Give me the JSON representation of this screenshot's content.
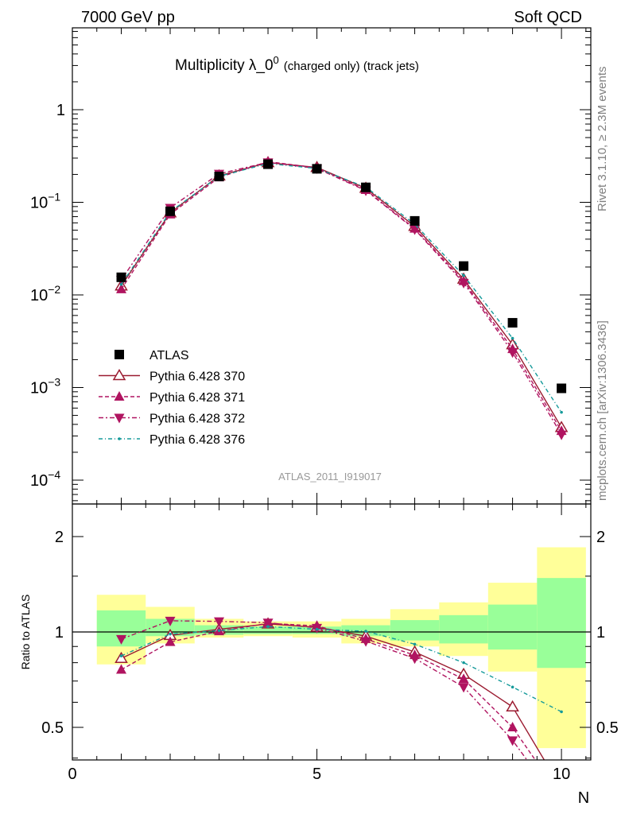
{
  "header": {
    "left": "7000 GeV pp",
    "right": "Soft QCD"
  },
  "side_labels": {
    "top": "Rivet 3.1.10, ≥ 2.3M events",
    "bottom": "mcplots.cern.ch [arXiv:1306.3436]"
  },
  "colors": {
    "atlas": "#000000",
    "p370": "#9b1b30",
    "p371": "#b01460",
    "p372": "#b01460",
    "p376": "#159a9a",
    "band_outer": "#ffff99",
    "band_inner": "#99ff99"
  },
  "chart_data": [
    {
      "type": "scatter",
      "title_main": "Multiplicity λ_0",
      "title_sup": "0",
      "title_small": "(charged only) (track jets)",
      "watermark": "ATLAS_2011_I919017",
      "y_scale": "log",
      "xlim": [
        0,
        10.6
      ],
      "ylim": [
        5e-05,
        5
      ],
      "y_ticks": [
        {
          "value": 1,
          "base": "1",
          "exp": ""
        },
        {
          "value": 0.1,
          "base": "10",
          "exp": "−1"
        },
        {
          "value": 0.01,
          "base": "10",
          "exp": "−2"
        },
        {
          "value": 0.001,
          "base": "10",
          "exp": "−3"
        },
        {
          "value": 0.0001,
          "base": "10",
          "exp": "−4"
        }
      ],
      "legend_position": "lower-left",
      "series": [
        {
          "name": "ATLAS",
          "style": "data",
          "x": [
            1,
            2,
            3,
            4,
            5,
            6,
            7,
            8,
            9,
            10
          ],
          "y": [
            0.0155,
            0.08,
            0.19,
            0.258,
            0.23,
            0.145,
            0.063,
            0.0205,
            0.005,
            0.00098
          ]
        },
        {
          "name": "Pythia 6.428 370",
          "style": "p370",
          "x": [
            1,
            2,
            3,
            4,
            5,
            6,
            7,
            8,
            9,
            10
          ],
          "y": [
            0.0125,
            0.077,
            0.193,
            0.268,
            0.238,
            0.142,
            0.055,
            0.0148,
            0.0029,
            0.00037
          ]
        },
        {
          "name": "Pythia 6.428 371",
          "style": "p371",
          "x": [
            1,
            2,
            3,
            4,
            5,
            6,
            7,
            8,
            9,
            10
          ],
          "y": [
            0.0115,
            0.074,
            0.186,
            0.275,
            0.236,
            0.136,
            0.052,
            0.0141,
            0.0026,
            0.00034
          ]
        },
        {
          "name": "Pythia 6.428 372",
          "style": "p372",
          "x": [
            1,
            2,
            3,
            4,
            5,
            6,
            7,
            8,
            9,
            10
          ],
          "y": [
            0.0145,
            0.087,
            0.203,
            0.27,
            0.232,
            0.134,
            0.051,
            0.0135,
            0.0024,
            0.00031
          ]
        },
        {
          "name": "Pythia 6.428 376",
          "style": "p376",
          "x": [
            1,
            2,
            3,
            4,
            5,
            6,
            7,
            8,
            9,
            10
          ],
          "y": [
            0.013,
            0.079,
            0.191,
            0.262,
            0.232,
            0.146,
            0.058,
            0.0162,
            0.0034,
            0.00054
          ]
        }
      ]
    },
    {
      "type": "scatter",
      "ylabel": "Ratio to ATLAS",
      "xlabel": "N",
      "xlim": [
        0,
        10.6
      ],
      "ylim": [
        0.35,
        2.3
      ],
      "x_ticks": [
        "0",
        "5",
        "10"
      ],
      "y_ticks": [
        "2",
        "1",
        "0.5"
      ],
      "bands": [
        {
          "x0": 0.5,
          "x1": 1.5,
          "outer": [
            0.79,
            1.31
          ],
          "inner": [
            0.9,
            1.17
          ]
        },
        {
          "x0": 1.5,
          "x1": 2.5,
          "outer": [
            0.92,
            1.2
          ],
          "inner": [
            0.97,
            1.1
          ]
        },
        {
          "x0": 2.5,
          "x1": 3.5,
          "outer": [
            0.96,
            1.1
          ],
          "inner": [
            0.98,
            1.05
          ]
        },
        {
          "x0": 3.5,
          "x1": 4.5,
          "outer": [
            0.97,
            1.08
          ],
          "inner": [
            0.985,
            1.04
          ]
        },
        {
          "x0": 4.5,
          "x1": 5.5,
          "outer": [
            0.96,
            1.08
          ],
          "inner": [
            0.985,
            1.04
          ]
        },
        {
          "x0": 5.5,
          "x1": 6.5,
          "outer": [
            0.92,
            1.1
          ],
          "inner": [
            0.97,
            1.05
          ]
        },
        {
          "x0": 6.5,
          "x1": 7.5,
          "outer": [
            0.9,
            1.18
          ],
          "inner": [
            0.94,
            1.09
          ]
        },
        {
          "x0": 7.5,
          "x1": 8.5,
          "outer": [
            0.84,
            1.24
          ],
          "inner": [
            0.92,
            1.13
          ]
        },
        {
          "x0": 8.5,
          "x1": 9.5,
          "outer": [
            0.75,
            1.43
          ],
          "inner": [
            0.88,
            1.22
          ]
        },
        {
          "x0": 9.5,
          "x1": 10.5,
          "outer": [
            0.43,
            1.85
          ],
          "inner": [
            0.77,
            1.48
          ]
        }
      ],
      "series": [
        {
          "name": "Pythia 6.428 370",
          "style": "p370",
          "x": [
            1,
            2,
            3,
            4,
            5,
            6,
            7,
            8,
            9,
            10
          ],
          "y": [
            0.825,
            0.975,
            1.02,
            1.06,
            1.035,
            0.97,
            0.865,
            0.735,
            0.58,
            0.32
          ]
        },
        {
          "name": "Pythia 6.428 371",
          "style": "p371",
          "x": [
            1,
            2,
            3,
            4,
            5,
            6,
            7,
            8,
            9,
            10
          ],
          "y": [
            0.76,
            0.93,
            1.005,
            1.065,
            1.045,
            0.95,
            0.845,
            0.71,
            0.5,
            0.3
          ]
        },
        {
          "name": "Pythia 6.428 372",
          "style": "p372",
          "x": [
            1,
            2,
            3,
            4,
            5,
            6,
            7,
            8,
            9,
            10
          ],
          "y": [
            0.95,
            1.085,
            1.08,
            1.07,
            1.03,
            0.935,
            0.825,
            0.67,
            0.455,
            0.28
          ]
        },
        {
          "name": "Pythia 6.428 376",
          "style": "p376",
          "x": [
            1,
            2,
            3,
            4,
            5,
            6,
            7,
            8,
            9,
            10
          ],
          "y": [
            0.84,
            0.985,
            1.01,
            1.04,
            1.02,
            1.005,
            0.915,
            0.8,
            0.67,
            0.56
          ]
        }
      ]
    }
  ]
}
